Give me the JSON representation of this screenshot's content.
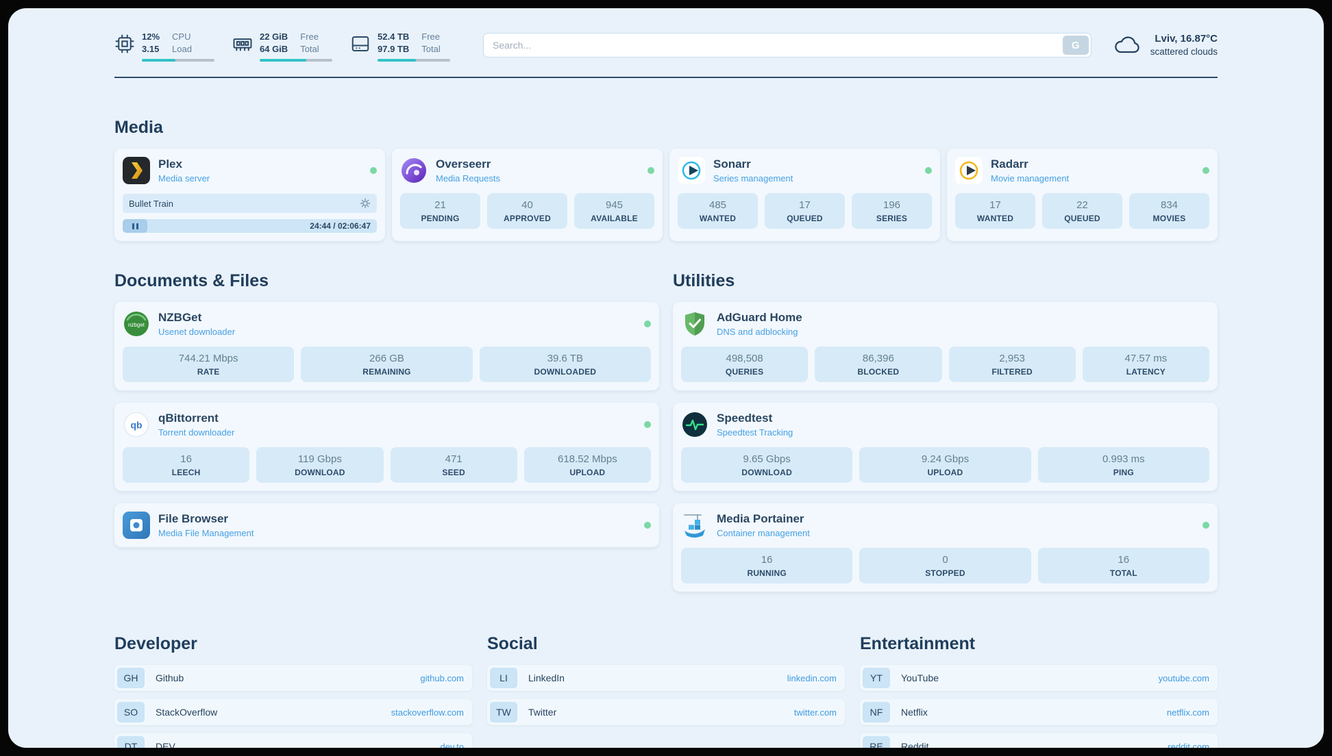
{
  "colors": {
    "background": "#e9f2fa",
    "card": "#f2f8fd",
    "stat_chip": "#d7eaf8",
    "accent_blue": "#47a0e4",
    "navy_text": "#2b4763",
    "online_green": "#7cd8a4",
    "progress_teal": "#31c3c6"
  },
  "topbar": {
    "system_widgets": [
      {
        "icon": "cpu-icon",
        "rows": [
          {
            "value": "12%",
            "label": "CPU"
          },
          {
            "value": "3.15",
            "label": "Load"
          }
        ],
        "progress_pct": 46
      },
      {
        "icon": "ram-icon",
        "rows": [
          {
            "value": "22 GiB",
            "label": "Free"
          },
          {
            "value": "64 GiB",
            "label": "Total"
          }
        ],
        "progress_pct": 64
      },
      {
        "icon": "disk-icon",
        "rows": [
          {
            "value": "52.4 TB",
            "label": "Free"
          },
          {
            "value": "97.9 TB",
            "label": "Total"
          }
        ],
        "progress_pct": 53
      }
    ],
    "search": {
      "placeholder": "Search...",
      "button_label": "G"
    },
    "weather": {
      "icon": "cloud-icon",
      "location": "Lviv, 16.87°C",
      "condition": "scattered clouds"
    }
  },
  "media": {
    "heading": "Media",
    "plex": {
      "icon": "plex-icon",
      "name": "Plex",
      "subtitle": "Media server",
      "status": "online",
      "now_playing": {
        "title": "Bullet Train",
        "time_display": "24:44 / 02:06:47",
        "state": "paused"
      }
    },
    "overseerr": {
      "icon": "overseerr-icon",
      "name": "Overseerr",
      "subtitle": "Media Requests",
      "status": "online",
      "stats": [
        {
          "value": "21",
          "label": "PENDING"
        },
        {
          "value": "40",
          "label": "APPROVED"
        },
        {
          "value": "945",
          "label": "AVAILABLE"
        }
      ]
    },
    "sonarr": {
      "icon": "sonarr-icon",
      "name": "Sonarr",
      "subtitle": "Series management",
      "status": "online",
      "stats": [
        {
          "value": "485",
          "label": "WANTED"
        },
        {
          "value": "17",
          "label": "QUEUED"
        },
        {
          "value": "196",
          "label": "SERIES"
        }
      ]
    },
    "radarr": {
      "icon": "radarr-icon",
      "name": "Radarr",
      "subtitle": "Movie management",
      "status": "online",
      "stats": [
        {
          "value": "17",
          "label": "WANTED"
        },
        {
          "value": "22",
          "label": "QUEUED"
        },
        {
          "value": "834",
          "label": "MOVIES"
        }
      ]
    }
  },
  "documents": {
    "heading": "Documents & Files",
    "nzbget": {
      "icon": "nzbget-icon",
      "name": "NZBGet",
      "subtitle": "Usenet downloader",
      "status": "online",
      "stats": [
        {
          "value": "744.21 Mbps",
          "label": "RATE"
        },
        {
          "value": "266 GB",
          "label": "REMAINING"
        },
        {
          "value": "39.6 TB",
          "label": "DOWNLOADED"
        }
      ]
    },
    "qbittorrent": {
      "icon": "qbittorrent-icon",
      "name": "qBittorrent",
      "subtitle": "Torrent downloader",
      "status": "online",
      "stats": [
        {
          "value": "16",
          "label": "LEECH"
        },
        {
          "value": "119 Gbps",
          "label": "DOWNLOAD"
        },
        {
          "value": "471",
          "label": "SEED"
        },
        {
          "value": "618.52 Mbps",
          "label": "UPLOAD"
        }
      ]
    },
    "filebrowser": {
      "icon": "filebrowser-icon",
      "name": "File Browser",
      "subtitle": "Media File Management",
      "status": "online"
    }
  },
  "utilities": {
    "heading": "Utilities",
    "adguard": {
      "icon": "adguard-icon",
      "name": "AdGuard Home",
      "subtitle": "DNS and adblocking",
      "stats": [
        {
          "value": "498,508",
          "label": "QUERIES"
        },
        {
          "value": "86,396",
          "label": "BLOCKED"
        },
        {
          "value": "2,953",
          "label": "FILTERED"
        },
        {
          "value": "47.57 ms",
          "label": "LATENCY"
        }
      ]
    },
    "speedtest": {
      "icon": "speedtest-icon",
      "name": "Speedtest",
      "subtitle": "Speedtest Tracking",
      "stats": [
        {
          "value": "9.65 Gbps",
          "label": "DOWNLOAD"
        },
        {
          "value": "9.24 Gbps",
          "label": "UPLOAD"
        },
        {
          "value": "0.993 ms",
          "label": "PING"
        }
      ]
    },
    "portainer": {
      "icon": "portainer-icon",
      "name": "Media Portainer",
      "subtitle": "Container management",
      "status": "online",
      "stats": [
        {
          "value": "16",
          "label": "RUNNING"
        },
        {
          "value": "0",
          "label": "STOPPED"
        },
        {
          "value": "16",
          "label": "TOTAL"
        }
      ]
    }
  },
  "bookmarks": {
    "developer": {
      "heading": "Developer",
      "items": [
        {
          "abbr": "GH",
          "name": "Github",
          "url": "github.com"
        },
        {
          "abbr": "SO",
          "name": "StackOverflow",
          "url": "stackoverflow.com"
        },
        {
          "abbr": "DT",
          "name": "DEV",
          "url": "dev.to"
        }
      ]
    },
    "social": {
      "heading": "Social",
      "items": [
        {
          "abbr": "LI",
          "name": "LinkedIn",
          "url": "linkedin.com"
        },
        {
          "abbr": "TW",
          "name": "Twitter",
          "url": "twitter.com"
        }
      ]
    },
    "entertainment": {
      "heading": "Entertainment",
      "items": [
        {
          "abbr": "YT",
          "name": "YouTube",
          "url": "youtube.com"
        },
        {
          "abbr": "NF",
          "name": "Netflix",
          "url": "netflix.com"
        },
        {
          "abbr": "RE",
          "name": "Reddit",
          "url": "reddit.com"
        }
      ]
    }
  }
}
